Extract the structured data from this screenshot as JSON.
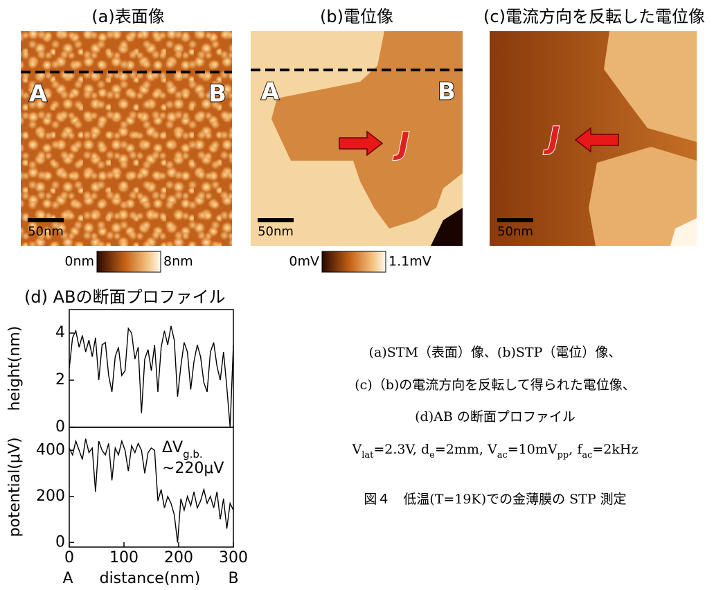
{
  "panels": [
    {
      "title": "(a)表面像",
      "point_a": "A",
      "point_b": "B",
      "scale_bar": "50nm",
      "colorbar": {
        "min": "0nm",
        "max": "8nm"
      }
    },
    {
      "title": "(b)電位像",
      "point_a": "A",
      "point_b": "B",
      "current": "J",
      "scale_bar": "50nm",
      "colorbar": {
        "min": "0mV",
        "max": "1.1mV"
      }
    },
    {
      "title": "(c)電流方向を反転した電位像",
      "current": "J",
      "scale_bar": "50nm"
    }
  ],
  "profile_title": "(d) ABの断面プロファイル",
  "chart_data": [
    {
      "type": "line",
      "ylabel": "height(nm)",
      "color": "#000000",
      "x": [
        0,
        6,
        12,
        18,
        24,
        30,
        36,
        42,
        48,
        54,
        60,
        66,
        72,
        78,
        84,
        90,
        96,
        102,
        108,
        114,
        120,
        126,
        132,
        138,
        144,
        150,
        156,
        162,
        168,
        174,
        180,
        186,
        192,
        198,
        204,
        210,
        216,
        222,
        228,
        234,
        240,
        246,
        252,
        258,
        264,
        270,
        276,
        282,
        288,
        294,
        300
      ],
      "values": [
        2.5,
        3.8,
        4.1,
        3.4,
        3.9,
        3.2,
        3.7,
        3.0,
        3.8,
        2.0,
        3.5,
        3.6,
        2.2,
        1.5,
        3.0,
        3.4,
        2.2,
        2.4,
        4.2,
        4.0,
        2.9,
        3.4,
        0.6,
        2.9,
        3.3,
        2.4,
        3.5,
        1.5,
        3.4,
        4.1,
        3.5,
        4.3,
        3.7,
        1.3,
        2.6,
        3.6,
        3.2,
        1.6,
        2.8,
        3.5,
        3.0,
        1.9,
        1.5,
        3.2,
        3.6,
        2.6,
        2.0,
        3.2,
        1.7,
        0.0,
        3.5
      ],
      "xlim": [
        0,
        300
      ],
      "ylim": [
        0,
        5
      ],
      "yticks": [
        0,
        2,
        4
      ]
    },
    {
      "type": "line",
      "ylabel": "potential(μV)",
      "xlabel": "distance(nm)",
      "x_start_label": "A",
      "x_end_label": "B",
      "color": "#000000",
      "annotation": {
        "symbol": "ΔV",
        "subscript": "g.b.",
        "value": "~220μV"
      },
      "x": [
        0,
        6,
        12,
        18,
        24,
        30,
        36,
        42,
        48,
        54,
        60,
        66,
        72,
        78,
        84,
        90,
        96,
        102,
        108,
        114,
        120,
        126,
        132,
        138,
        144,
        150,
        156,
        162,
        168,
        174,
        180,
        186,
        192,
        198,
        204,
        210,
        216,
        222,
        228,
        234,
        240,
        246,
        252,
        258,
        264,
        270,
        276,
        282,
        288,
        294,
        300
      ],
      "values": [
        410,
        380,
        440,
        400,
        360,
        450,
        390,
        410,
        220,
        440,
        400,
        380,
        430,
        270,
        410,
        380,
        440,
        400,
        310,
        420,
        390,
        430,
        400,
        300,
        390,
        410,
        400,
        180,
        230,
        150,
        200,
        170,
        120,
        0,
        190,
        140,
        200,
        160,
        220,
        150,
        180,
        230,
        170,
        200,
        150,
        220,
        100,
        190,
        60,
        170,
        140
      ],
      "xlim": [
        0,
        300
      ],
      "ylim": [
        -20,
        500
      ],
      "yticks": [
        0,
        200,
        400
      ],
      "xticks": [
        0,
        100,
        200,
        300
      ]
    }
  ],
  "caption": {
    "lines": [
      "(a)STM（表面）像、(b)STP（電位）像、",
      "(c)（b)の電流方向を反転して得られた電位像、",
      "(d)AB の断面プロファイル"
    ],
    "parameters": [
      {
        "text": "V"
      },
      {
        "sub": "lat"
      },
      {
        "text": "=2.3V, d"
      },
      {
        "sub": "e"
      },
      {
        "text": "=2mm, V"
      },
      {
        "sub": "ac"
      },
      {
        "text": "=10mV"
      },
      {
        "sub": "pp"
      },
      {
        "text": ", f"
      },
      {
        "sub": "ac"
      },
      {
        "text": "=2kHz"
      }
    ],
    "figure": "図４　低温(T=19K)での金薄膜の STP 測定"
  }
}
